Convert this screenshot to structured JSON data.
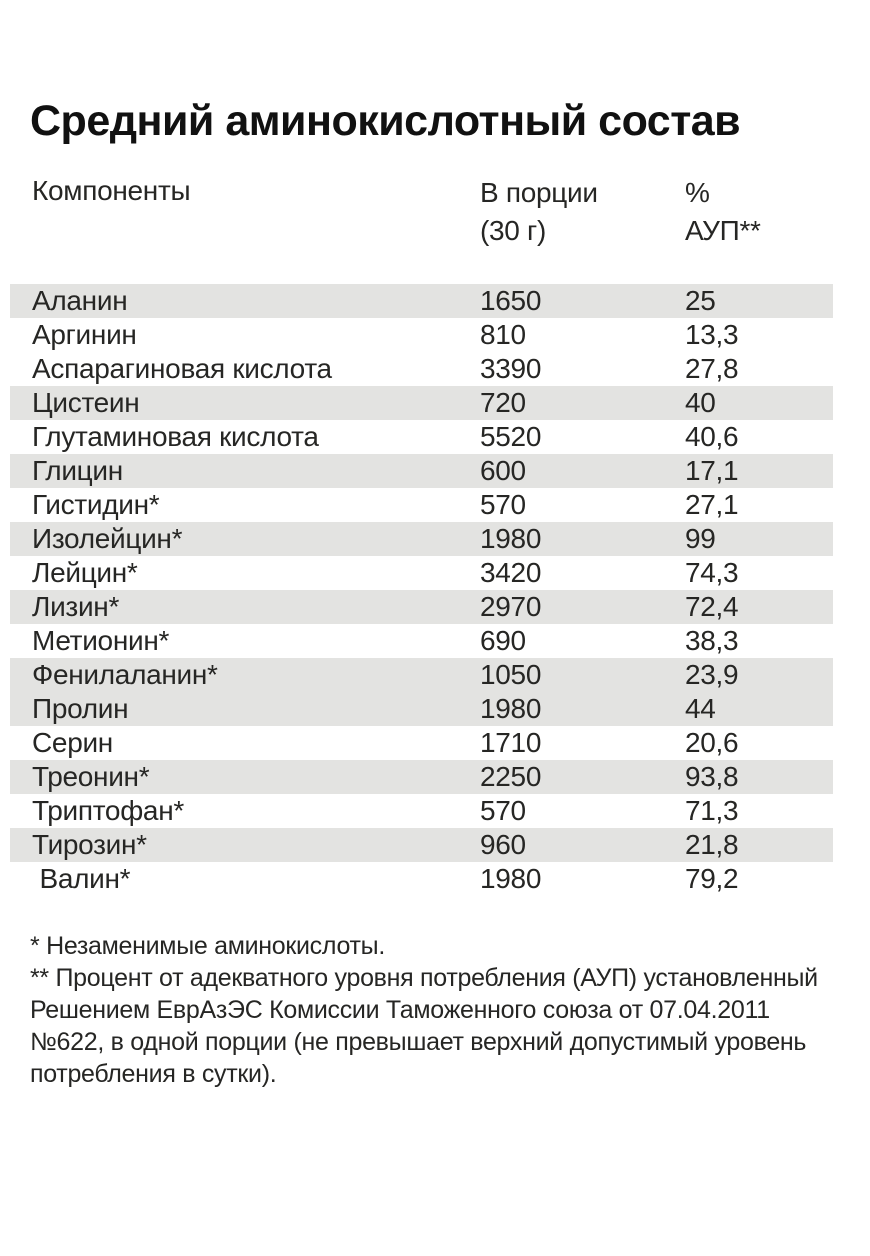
{
  "title": "Средний аминокислотный состав",
  "colors": {
    "row_shade": "#e3e3e1",
    "text": "#262624",
    "title_text": "#111111",
    "background": "#ffffff"
  },
  "table": {
    "headers": {
      "component": "Компоненты",
      "per_serving_line1": "В порции",
      "per_serving_line2": "(30 г)",
      "percent_line1": "%",
      "percent_line2": "АУП**"
    },
    "rows": [
      {
        "name": "Аланин",
        "per_serving": "1650",
        "percent_aup": "25",
        "shaded": true
      },
      {
        "name": "Аргинин",
        "per_serving": "810",
        "percent_aup": "13,3",
        "shaded": false
      },
      {
        "name": "Аспарагиновая кислота",
        "per_serving": "3390",
        "percent_aup": "27,8",
        "shaded": false
      },
      {
        "name": "Цистеин",
        "per_serving": "720",
        "percent_aup": "40",
        "shaded": true
      },
      {
        "name": "Глутаминовая кислота",
        "per_serving": "5520",
        "percent_aup": "40,6",
        "shaded": false
      },
      {
        "name": "Глицин",
        "per_serving": "600",
        "percent_aup": "17,1",
        "shaded": true
      },
      {
        "name": "Гистидин*",
        "per_serving": "570",
        "percent_aup": "27,1",
        "shaded": false
      },
      {
        "name": "Изолейцин*",
        "per_serving": "1980",
        "percent_aup": "99",
        "shaded": true
      },
      {
        "name": "Лейцин*",
        "per_serving": "3420",
        "percent_aup": "74,3",
        "shaded": false
      },
      {
        "name": "Лизин*",
        "per_serving": "2970",
        "percent_aup": "72,4",
        "shaded": true
      },
      {
        "name": "Метионин*",
        "per_serving": "690",
        "percent_aup": "38,3",
        "shaded": false
      },
      {
        "name": "Фенилаланин*",
        "per_serving": "1050",
        "percent_aup": "23,9",
        "shaded": true
      },
      {
        "name": "Пролин",
        "per_serving": "1980",
        "percent_aup": "44",
        "shaded": true
      },
      {
        "name": "Серин",
        "per_serving": "1710",
        "percent_aup": "20,6",
        "shaded": false
      },
      {
        "name": "Треонин*",
        "per_serving": "2250",
        "percent_aup": "93,8",
        "shaded": true
      },
      {
        "name": "Триптофан*",
        "per_serving": "570",
        "percent_aup": "71,3",
        "shaded": false
      },
      {
        "name": "Тирозин*",
        "per_serving": "960",
        "percent_aup": "21,8",
        "shaded": true
      },
      {
        "name": " Валин*",
        "per_serving": "1980",
        "percent_aup": "79,2",
        "shaded": false
      }
    ]
  },
  "footnotes": {
    "note1": "* Незаменимые аминокислоты.",
    "note2": "** Процент от адекватного уровня потребления (АУП) установленный Решением ЕврАзЭС Комиссии Таможенного союза от 07.04.2011 №622, в одной порции (не превышает верхний допустимый уровень потребления в сутки)."
  }
}
